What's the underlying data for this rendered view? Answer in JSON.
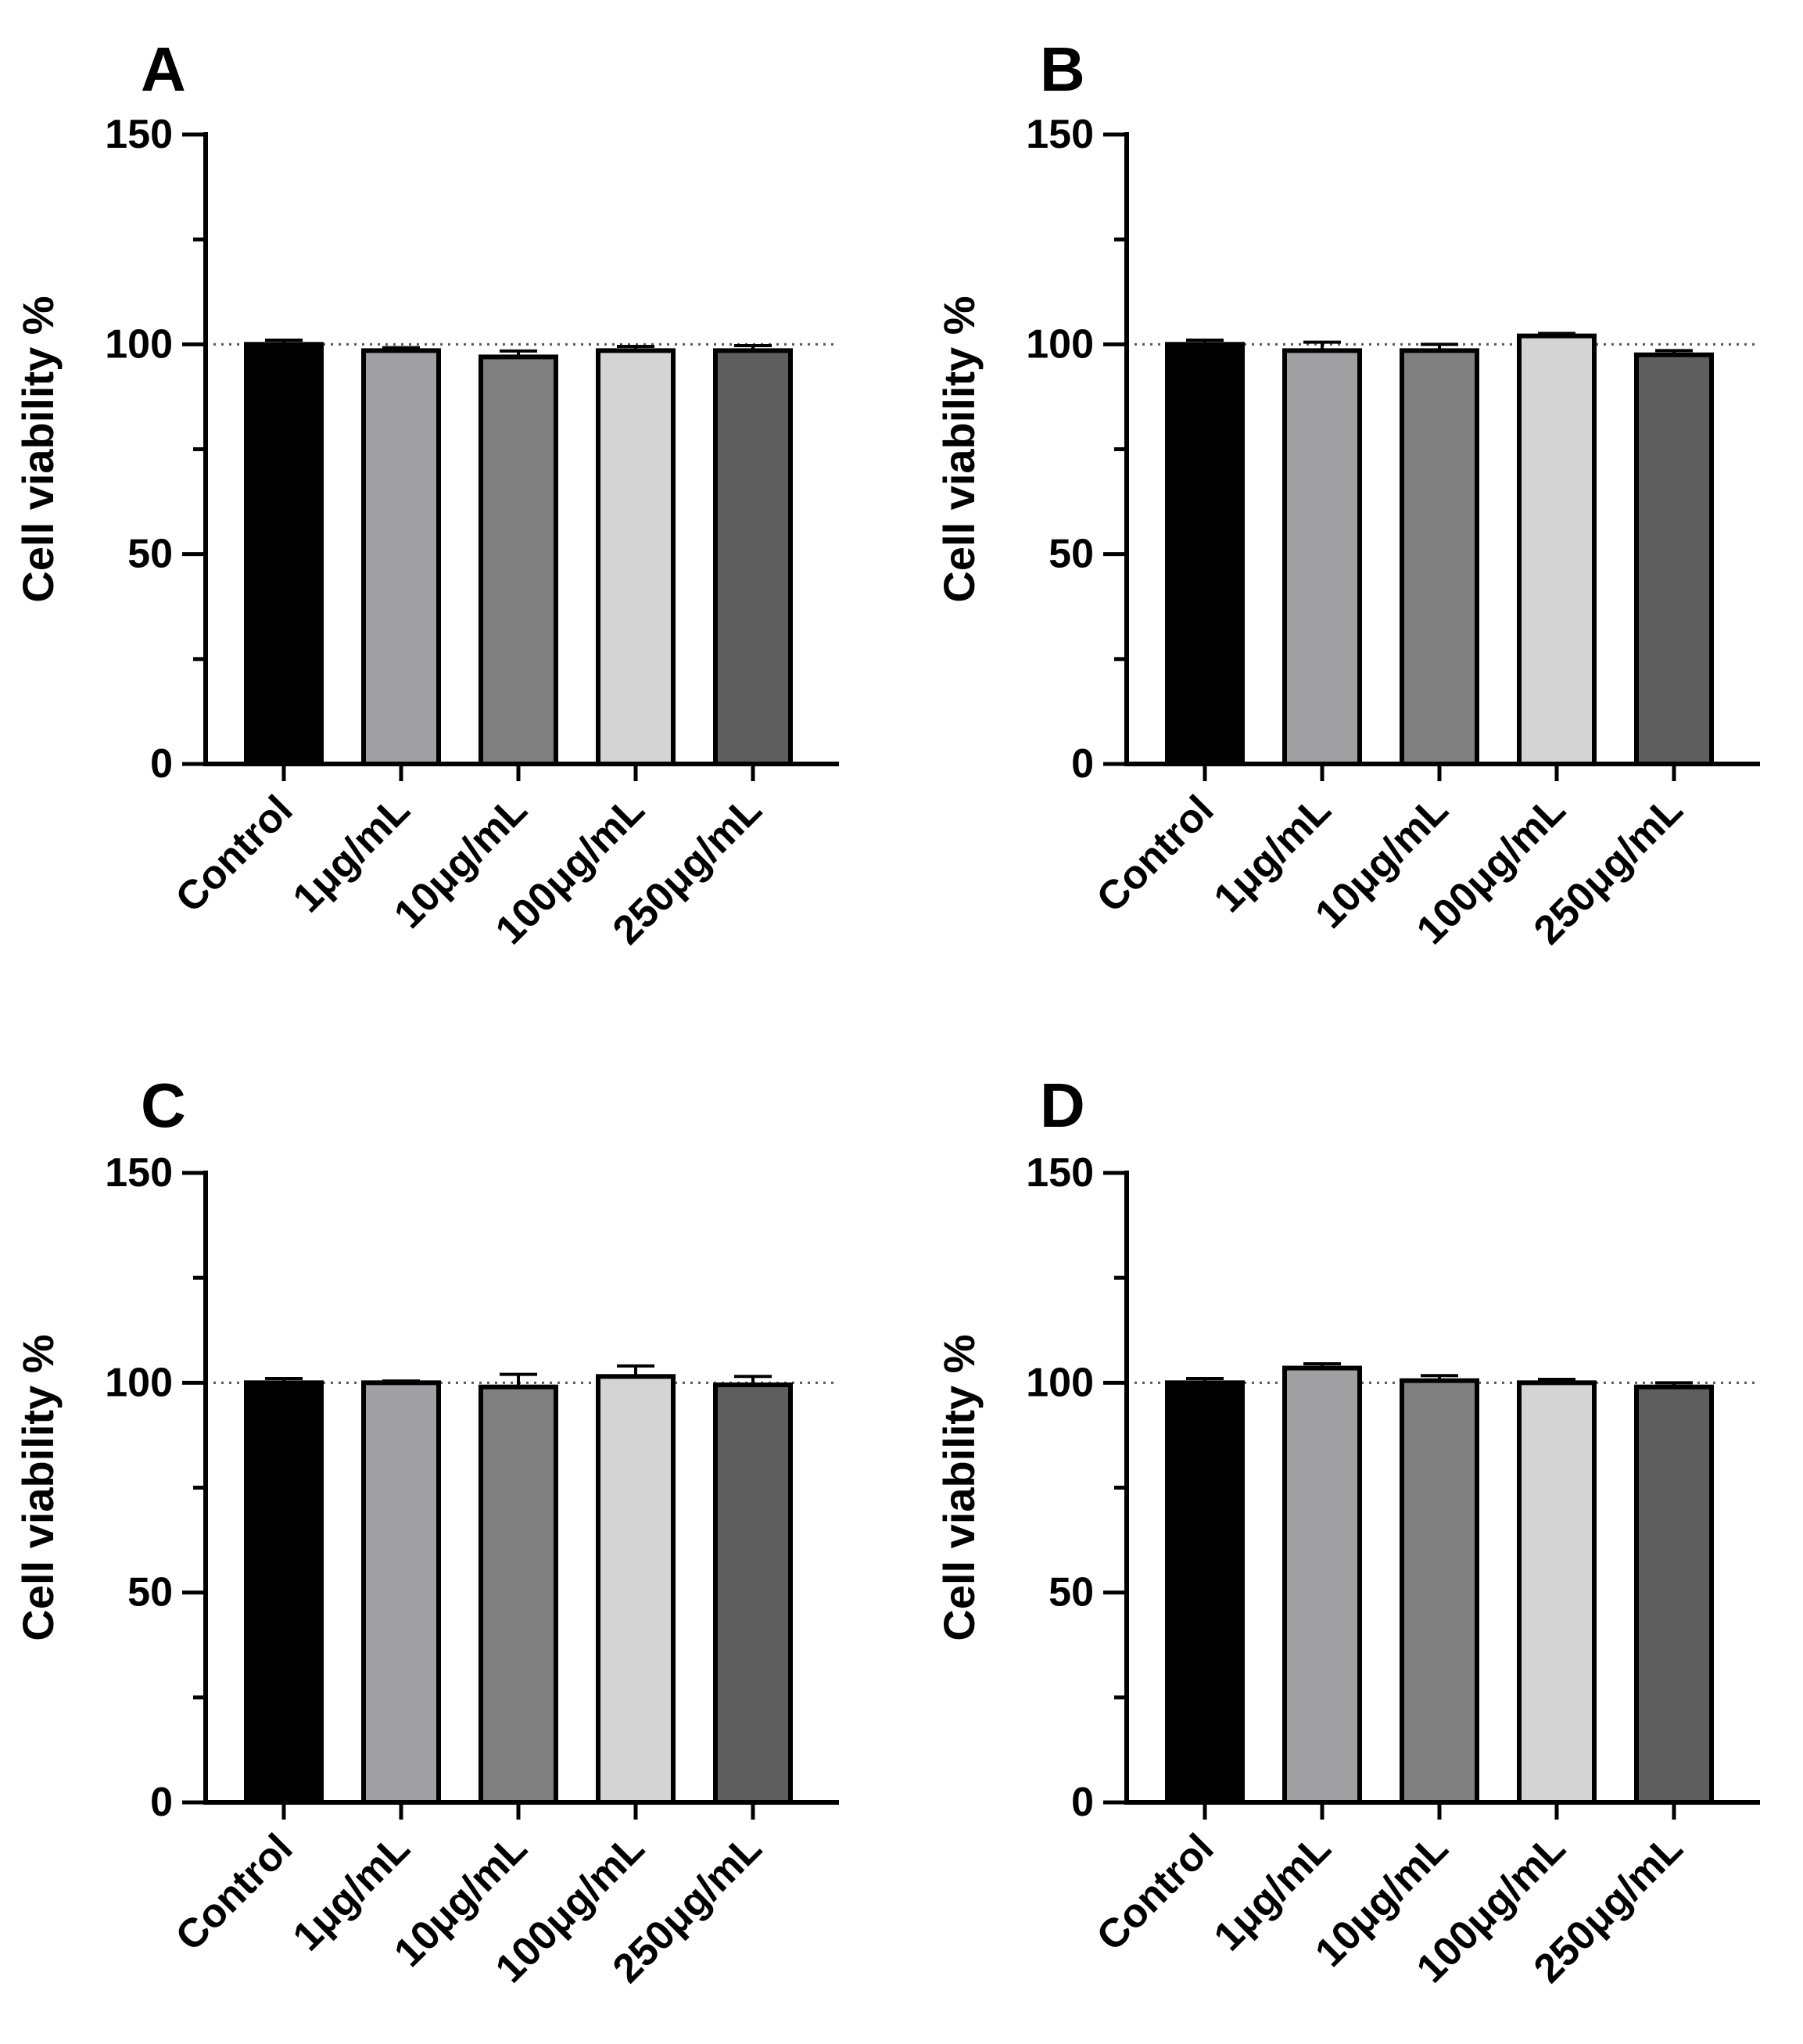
{
  "chart_data": [
    {
      "panel": "A",
      "type": "bar",
      "categories": [
        "Control",
        "1μg/mL",
        "10μg/mL",
        "100μg/mL",
        "250μg/mL"
      ],
      "values": [
        100,
        98.5,
        97,
        98.5,
        98.5
      ],
      "errors": [
        1,
        0.7,
        1.4,
        1,
        1.2
      ],
      "ylabel": "Cell viability %",
      "ylim": [
        0,
        150
      ],
      "yticks": [
        0,
        50,
        100,
        150
      ],
      "reference_line": 100
    },
    {
      "panel": "B",
      "type": "bar",
      "categories": [
        "Control",
        "1μg/mL",
        "10μg/mL",
        "100μg/mL",
        "250μg/mL"
      ],
      "values": [
        100,
        98.5,
        98.5,
        102,
        97.5
      ],
      "errors": [
        1,
        2,
        1.5,
        0.6,
        1
      ],
      "ylabel": "Cell viability %",
      "ylim": [
        0,
        150
      ],
      "yticks": [
        0,
        50,
        100,
        150
      ],
      "reference_line": 100
    },
    {
      "panel": "C",
      "type": "bar",
      "categories": [
        "Control",
        "1μg/mL",
        "10μg/mL",
        "100μg/mL",
        "250μg/mL"
      ],
      "values": [
        100,
        100,
        99,
        101.5,
        99.5
      ],
      "errors": [
        1,
        0.4,
        3,
        2.5,
        2
      ],
      "ylabel": "Cell viability %",
      "ylim": [
        0,
        150
      ],
      "yticks": [
        0,
        50,
        100,
        150
      ],
      "reference_line": 100
    },
    {
      "panel": "D",
      "type": "bar",
      "categories": [
        "Control",
        "1μg/mL",
        "10μg/mL",
        "100μg/mL",
        "250μg/mL"
      ],
      "values": [
        100,
        103.5,
        100.5,
        100,
        99
      ],
      "errors": [
        1,
        1,
        1.2,
        0.8,
        1
      ],
      "ylabel": "Cell viability %",
      "ylim": [
        0,
        150
      ],
      "yticks": [
        0,
        50,
        100,
        150
      ],
      "reference_line": 100
    }
  ],
  "colors": {
    "bars": [
      "#000000",
      "#a0a0a3",
      "#808080",
      "#d4d4d4",
      "#5e5e5e"
    ],
    "axis": "#000000"
  }
}
